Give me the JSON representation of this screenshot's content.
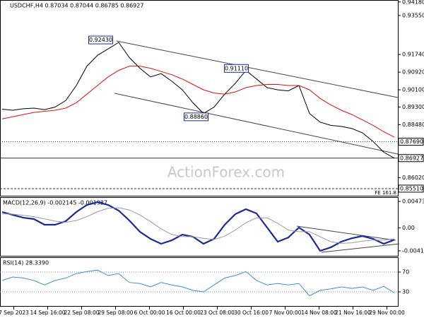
{
  "chart_data": [
    {
      "type": "line",
      "title": "USDCHF,H4 0.87034 0.87044 0.86785 0.86927",
      "watermark": "ActionForex.com",
      "xlim": [
        -0.2,
        37.33
      ],
      "xticks": [
        {
          "value": 1.1,
          "label": "7 Sep 2023"
        },
        {
          "value": 4.3,
          "label": "14 Sep 16:00"
        },
        {
          "value": 7.5,
          "label": "22 Sep 08:00"
        },
        {
          "value": 10.7,
          "label": "29 Sep 08:00"
        },
        {
          "value": 13.9,
          "label": "6 Oct 00:00"
        },
        {
          "value": 17.1,
          "label": "16 Oct 00:00"
        },
        {
          "value": 20.3,
          "label": "23 Oct 08:00"
        },
        {
          "value": 23.5,
          "label": "30 Oct 16:00"
        },
        {
          "value": 26.7,
          "label": "7 Nov 00:00"
        },
        {
          "value": 29.9,
          "label": "14 Nov 08:00"
        },
        {
          "value": 33.1,
          "label": "21 Nov 16:00"
        },
        {
          "value": 36.3,
          "label": "29 Nov 00:00"
        }
      ],
      "ylim": [
        0.8518,
        0.9427
      ],
      "yticks": [
        {
          "value": 0.9418,
          "label": "0.94180"
        },
        {
          "value": 0.9355,
          "label": "0.93550"
        },
        {
          "value": 0.9174,
          "label": "0.91740"
        },
        {
          "value": 0.9092,
          "label": "0.90920"
        },
        {
          "value": 0.901,
          "label": "0.90100"
        },
        {
          "value": 0.893,
          "label": "0.89300"
        },
        {
          "value": 0.8848,
          "label": "0.88480"
        },
        {
          "value": 0.8602,
          "label": "0.86020"
        }
      ],
      "series": [
        {
          "name": "USDCHF",
          "color": "#000000",
          "values": [
            0.892,
            0.8915,
            0.8922,
            0.8925,
            0.8918,
            0.893,
            0.896,
            0.903,
            0.912,
            0.917,
            0.92,
            0.923,
            0.916,
            0.911,
            0.907,
            0.9085,
            0.905,
            0.901,
            0.895,
            0.89,
            0.893,
            0.899,
            0.904,
            0.91,
            0.906,
            0.902,
            0.901,
            0.9005,
            0.903,
            0.89,
            0.886,
            0.8845,
            0.884,
            0.883,
            0.881,
            0.877,
            0.872,
            0.8693
          ]
        },
        {
          "name": "MA",
          "color": "#e01010",
          "values": [
            0.8875,
            0.8885,
            0.8895,
            0.8905,
            0.891,
            0.8915,
            0.8925,
            0.895,
            0.899,
            0.903,
            0.907,
            0.91,
            0.912,
            0.912,
            0.911,
            0.9095,
            0.908,
            0.906,
            0.9035,
            0.901,
            0.8995,
            0.899,
            0.9,
            0.902,
            0.903,
            0.9035,
            0.9035,
            0.903,
            0.903,
            0.901,
            0.897,
            0.894,
            0.8915,
            0.8895,
            0.887,
            0.8845,
            0.8815,
            0.879
          ]
        }
      ],
      "annotations": [
        {
          "x": 9.3,
          "value": 0.9243,
          "label": "0.92430"
        },
        {
          "x": 22.1,
          "value": 0.9111,
          "label": "0.91110"
        },
        {
          "x": 18.3,
          "value": 0.8886,
          "label": "0.88860"
        }
      ],
      "levels": [
        {
          "value": 0.8769,
          "label": "0.87690",
          "style": "dotted"
        },
        {
          "value": 0.86927,
          "style": "solid"
        },
        {
          "value": 0.8551,
          "label": "0.85510",
          "style": "dashed",
          "note": "FE 161.8"
        }
      ]
    },
    {
      "type": "line",
      "title": "MACD(12,26,9) -0.002145 -0.001987",
      "ylim": [
        -0.00516,
        0.0055
      ],
      "yticks": [
        0.004738,
        {
          "value": 0,
          "label": "0.00"
        },
        -0.004144
      ],
      "series": [
        {
          "name": "MACD",
          "color": "#1a2a9a",
          "width": 2.2,
          "values": [
            0.00283,
            0.00232,
            0.00181,
            0.00156,
            0.00055,
            0.00055,
            0.00118,
            0.00283,
            0.0041,
            0.00461,
            0.0041,
            0.00309,
            0.00131,
            -0.00072,
            -0.00199,
            -0.00288,
            -0.00225,
            -0.00123,
            -0.00161,
            -0.00288,
            -0.00199,
            0.00055,
            0.00245,
            0.00334,
            0.00258,
            4e-05,
            -0.0025,
            -0.00174,
            4e-05,
            -0.00123,
            -0.00415,
            -0.00352,
            -0.0025,
            -0.00187,
            -0.00148,
            -0.00199,
            -0.00288,
            -0.00215
          ]
        },
        {
          "name": "Signal",
          "color": "#9a9a9a",
          "width": 1,
          "values": [
            0.0025,
            0.00245,
            0.00225,
            0.002,
            0.0016,
            0.0012,
            0.001,
            0.0013,
            0.002,
            0.0029,
            0.0035,
            0.0036,
            0.0032,
            0.0023,
            0.0011,
            -0.0002,
            -0.0012,
            -0.0016,
            -0.0016,
            -0.0019,
            -0.0021,
            -0.0015,
            -0.0004,
            0.0009,
            0.0018,
            0.0018,
            0.0008,
            -0.0004,
            -0.0007,
            -0.0007,
            -0.0016,
            -0.0025,
            -0.0028,
            -0.0027,
            -0.0024,
            -0.0022,
            -0.0022,
            -0.00199
          ]
        }
      ]
    },
    {
      "type": "line",
      "title": "RSI(14) 28.3390",
      "grid": true,
      "ylim": [
        0,
        100
      ],
      "yticks": [
        70,
        30
      ],
      "series": [
        {
          "name": "RSI",
          "color": "#3d8fd6",
          "width": 1,
          "values": [
            53,
            60,
            58,
            53,
            44,
            53,
            58,
            67,
            71,
            74,
            63,
            67,
            49,
            47,
            40,
            49,
            44,
            40,
            33,
            30,
            44,
            58,
            63,
            71,
            53,
            44,
            47,
            44,
            47,
            22,
            33,
            36,
            40,
            37,
            40,
            33,
            41,
            28.339
          ]
        }
      ]
    }
  ]
}
